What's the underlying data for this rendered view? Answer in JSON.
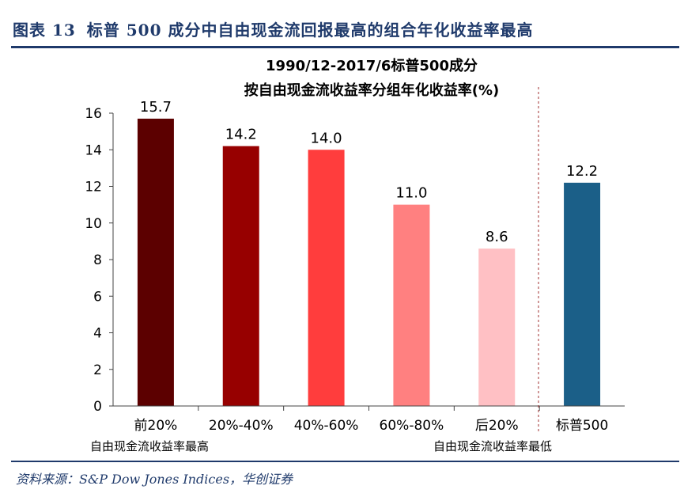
{
  "figure": {
    "label": "图表 13",
    "caption": "标普 500 成分中自由现金流回报最高的组合年化收益率最高",
    "source": "资料来源：S&P Dow Jones Indices，华创证券"
  },
  "chart_data": {
    "type": "bar",
    "title_line1": "1990/12-2017/6标普500成分",
    "title_line2": "按自由现金流收益率分组年化收益率(%)",
    "categories": [
      "前20%",
      "20%-40%",
      "40%-60%",
      "60%-80%",
      "后20%",
      "标普500"
    ],
    "values": [
      15.7,
      14.2,
      14.0,
      11.0,
      8.6,
      12.2
    ],
    "value_labels": [
      "15.7",
      "14.2",
      "14.0",
      "11.0",
      "8.6",
      "12.2"
    ],
    "colors": [
      "#5c0000",
      "#970000",
      "#ff3d3d",
      "#ff8080",
      "#ffc0c4",
      "#1b5f88"
    ],
    "yticks": [
      "0",
      "2",
      "4",
      "6",
      "8",
      "10",
      "12",
      "14",
      "16"
    ],
    "ylim": [
      0,
      16
    ],
    "annotations": {
      "high": "自由现金流收益率最高",
      "low": "自由现金流收益率最低"
    }
  }
}
